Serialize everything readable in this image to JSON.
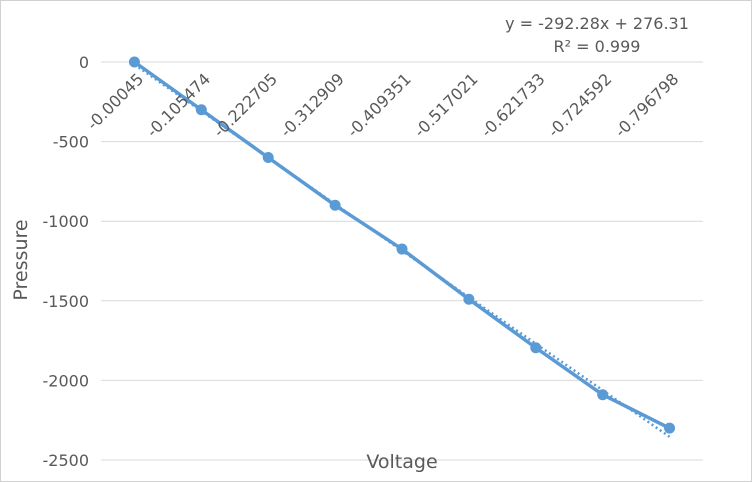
{
  "chart_data": {
    "type": "line",
    "xlabel": "Voltage",
    "ylabel": "Pressure",
    "ylim": [
      -2500,
      0
    ],
    "yticks": [
      0,
      -500,
      -1000,
      -1500,
      -2000,
      -2500
    ],
    "grid": true,
    "categories": [
      "-0.00045",
      "-0.105474",
      "-0.222705",
      "-0.312909",
      "-0.409351",
      "-0.517021",
      "-0.621733",
      "-0.724592",
      "-0.796798"
    ],
    "series": [
      {
        "values": [
          0,
          -300,
          -600,
          -900,
          -1175,
          -1490,
          -1795,
          -2090,
          -2300
        ],
        "color": "#5B9BD5",
        "marker": "circle"
      }
    ],
    "trendline": {
      "type": "linear",
      "style": "dotted",
      "color": "#5B9BD5",
      "equation": "y = -292.28x + 276.31",
      "r_squared": "R² = 0.999",
      "slope": -292.28,
      "intercept": 276.31
    }
  }
}
